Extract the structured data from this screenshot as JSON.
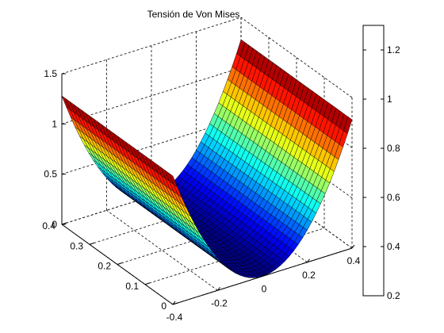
{
  "chart_data": {
    "type": "surface",
    "title": "Tensión de Von Mises",
    "x_axis": {
      "ticks": [
        -0.4,
        -0.2,
        0,
        0.2,
        0.4
      ],
      "labels": [
        "-0.4",
        "-0.2",
        "0",
        "0.2",
        "0.4"
      ],
      "range": [
        -0.4,
        0.4
      ]
    },
    "y_axis": {
      "ticks": [
        0,
        0.1,
        0.2,
        0.3,
        0.4
      ],
      "labels": [
        "0",
        "0.1",
        "0.2",
        "0.3",
        "0.4"
      ],
      "range": [
        0,
        0.4
      ]
    },
    "z_axis": {
      "ticks": [
        0,
        0.5,
        1,
        1.5
      ],
      "labels": [
        "0",
        "0.5",
        "1",
        "1.5"
      ],
      "range": [
        0,
        1.5
      ]
    },
    "surface": {
      "formula": "z = 8*x^2",
      "x_range": [
        -0.4,
        0.4
      ],
      "y_range": [
        0,
        0.4
      ],
      "z_max": 1.28
    },
    "colorbar": {
      "ticks": [
        0.2,
        0.4,
        0.6,
        0.8,
        1,
        1.2
      ],
      "labels": [
        "0.2",
        "0.4",
        "0.6",
        "0.8",
        "1",
        "1.2"
      ],
      "range": [
        0.2,
        1.3
      ],
      "colormap": "jet"
    },
    "grid": true
  }
}
